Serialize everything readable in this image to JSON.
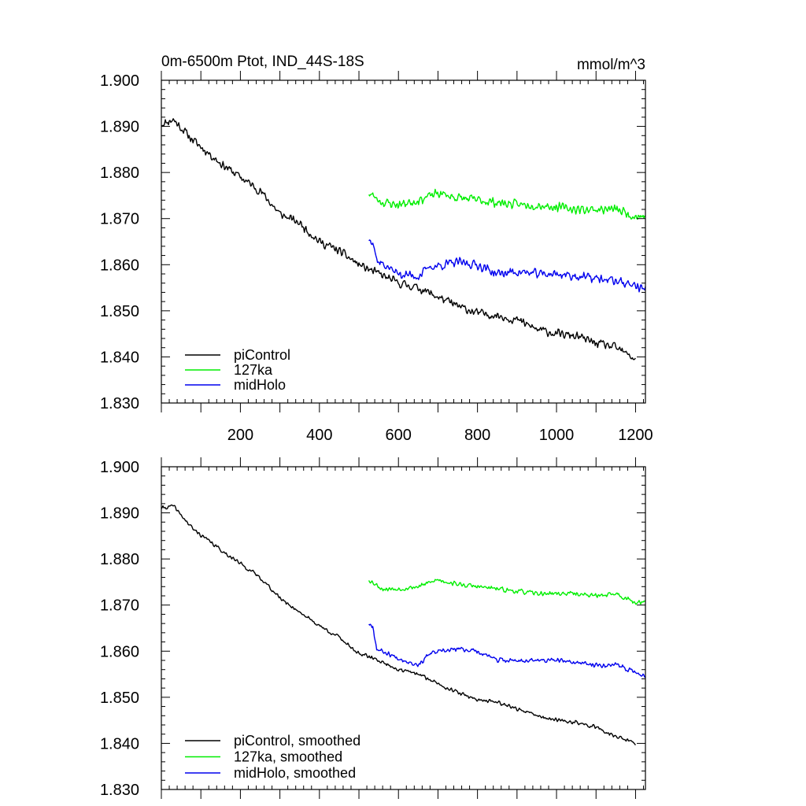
{
  "chart_data": [
    {
      "type": "line",
      "title": "0m-6500m Ptot, IND_44S-18S",
      "units": "mmol/m^3",
      "xlabel": "",
      "ylabel": "",
      "xlim": [
        0,
        1225
      ],
      "ylim": [
        1.83,
        1.9
      ],
      "grid": false,
      "xticks": [
        200,
        400,
        600,
        800,
        1000,
        1200
      ],
      "xtick_labels": [
        "200",
        "400",
        "600",
        "800",
        "1000",
        "1200"
      ],
      "yticks": [
        1.83,
        1.84,
        1.85,
        1.86,
        1.87,
        1.88,
        1.89,
        1.9
      ],
      "ytick_labels": [
        "1.830",
        "1.840",
        "1.850",
        "1.860",
        "1.870",
        "1.880",
        "1.890",
        "1.900"
      ],
      "legend_position": "bottom-left",
      "series": [
        {
          "name": "piControl",
          "color": "#000000",
          "noise": 0.0011,
          "seed": 11,
          "points": [
            [
              0,
              1.8905
            ],
            [
              30,
              1.8915
            ],
            [
              80,
              1.887
            ],
            [
              150,
              1.882
            ],
            [
              200,
              1.879
            ],
            [
              250,
              1.876
            ],
            [
              300,
              1.871
            ],
            [
              350,
              1.869
            ],
            [
              400,
              1.865
            ],
            [
              450,
              1.863
            ],
            [
              500,
              1.86
            ],
            [
              550,
              1.858
            ],
            [
              600,
              1.856
            ],
            [
              650,
              1.855
            ],
            [
              700,
              1.853
            ],
            [
              750,
              1.851
            ],
            [
              800,
              1.8495
            ],
            [
              850,
              1.849
            ],
            [
              900,
              1.848
            ],
            [
              950,
              1.846
            ],
            [
              1000,
              1.845
            ],
            [
              1050,
              1.8445
            ],
            [
              1100,
              1.843
            ],
            [
              1150,
              1.842
            ],
            [
              1200,
              1.8395
            ]
          ]
        },
        {
          "name": "127ka",
          "color": "#00ee00",
          "noise": 0.0012,
          "seed": 23,
          "points": [
            [
              525,
              1.8755
            ],
            [
              560,
              1.8735
            ],
            [
              600,
              1.873
            ],
            [
              650,
              1.874
            ],
            [
              700,
              1.8755
            ],
            [
              750,
              1.8745
            ],
            [
              800,
              1.874
            ],
            [
              850,
              1.8735
            ],
            [
              900,
              1.873
            ],
            [
              950,
              1.873
            ],
            [
              1000,
              1.8725
            ],
            [
              1050,
              1.872
            ],
            [
              1100,
              1.872
            ],
            [
              1150,
              1.872
            ],
            [
              1200,
              1.8705
            ],
            [
              1225,
              1.8705
            ]
          ]
        },
        {
          "name": "midHolo",
          "color": "#0000ee",
          "noise": 0.0012,
          "seed": 37,
          "points": [
            [
              525,
              1.8655
            ],
            [
              535,
              1.8655
            ],
            [
              545,
              1.861
            ],
            [
              600,
              1.858
            ],
            [
              650,
              1.8575
            ],
            [
              680,
              1.8595
            ],
            [
              750,
              1.8605
            ],
            [
              800,
              1.86
            ],
            [
              850,
              1.858
            ],
            [
              900,
              1.8585
            ],
            [
              950,
              1.858
            ],
            [
              1000,
              1.858
            ],
            [
              1050,
              1.8575
            ],
            [
              1100,
              1.857
            ],
            [
              1150,
              1.8565
            ],
            [
              1200,
              1.8555
            ],
            [
              1225,
              1.8545
            ]
          ]
        }
      ]
    },
    {
      "type": "line",
      "title": "",
      "xlabel": "",
      "ylabel": "",
      "xlim": [
        0,
        1225
      ],
      "ylim": [
        1.83,
        1.9
      ],
      "grid": false,
      "yticks": [
        1.83,
        1.84,
        1.85,
        1.86,
        1.87,
        1.88,
        1.89,
        1.9
      ],
      "ytick_labels": [
        "1.830",
        "1.840",
        "1.850",
        "1.860",
        "1.870",
        "1.880",
        "1.890",
        "1.900"
      ],
      "legend_position": "bottom-left",
      "series": [
        {
          "name": "piControl, smoothed",
          "color": "#000000",
          "noise": 0.0005,
          "seed": 41,
          "points": [
            [
              0,
              1.891
            ],
            [
              30,
              1.8915
            ],
            [
              80,
              1.8865
            ],
            [
              150,
              1.882
            ],
            [
              200,
              1.879
            ],
            [
              250,
              1.876
            ],
            [
              300,
              1.8715
            ],
            [
              350,
              1.8685
            ],
            [
              400,
              1.8655
            ],
            [
              450,
              1.863
            ],
            [
              500,
              1.8595
            ],
            [
              550,
              1.858
            ],
            [
              600,
              1.856
            ],
            [
              650,
              1.855
            ],
            [
              700,
              1.853
            ],
            [
              750,
              1.851
            ],
            [
              800,
              1.8495
            ],
            [
              850,
              1.849
            ],
            [
              900,
              1.8475
            ],
            [
              950,
              1.846
            ],
            [
              1000,
              1.845
            ],
            [
              1050,
              1.8445
            ],
            [
              1100,
              1.8435
            ],
            [
              1150,
              1.8415
            ],
            [
              1200,
              1.84
            ]
          ]
        },
        {
          "name": "127ka, smoothed",
          "color": "#00ee00",
          "noise": 0.0006,
          "seed": 53,
          "points": [
            [
              525,
              1.8755
            ],
            [
              560,
              1.8735
            ],
            [
              600,
              1.8735
            ],
            [
              650,
              1.874
            ],
            [
              700,
              1.8755
            ],
            [
              750,
              1.8745
            ],
            [
              800,
              1.874
            ],
            [
              850,
              1.8735
            ],
            [
              900,
              1.873
            ],
            [
              950,
              1.8725
            ],
            [
              1000,
              1.8725
            ],
            [
              1050,
              1.8725
            ],
            [
              1100,
              1.872
            ],
            [
              1150,
              1.8725
            ],
            [
              1200,
              1.8705
            ],
            [
              1225,
              1.871
            ]
          ]
        },
        {
          "name": "midHolo, smoothed",
          "color": "#0000ee",
          "noise": 0.0006,
          "seed": 67,
          "points": [
            [
              525,
              1.866
            ],
            [
              535,
              1.8655
            ],
            [
              545,
              1.8605
            ],
            [
              600,
              1.8585
            ],
            [
              650,
              1.857
            ],
            [
              680,
              1.8595
            ],
            [
              750,
              1.8605
            ],
            [
              800,
              1.86
            ],
            [
              850,
              1.858
            ],
            [
              900,
              1.858
            ],
            [
              950,
              1.858
            ],
            [
              1000,
              1.858
            ],
            [
              1050,
              1.8575
            ],
            [
              1100,
              1.857
            ],
            [
              1150,
              1.857
            ],
            [
              1200,
              1.8555
            ],
            [
              1225,
              1.8545
            ]
          ]
        }
      ]
    }
  ]
}
